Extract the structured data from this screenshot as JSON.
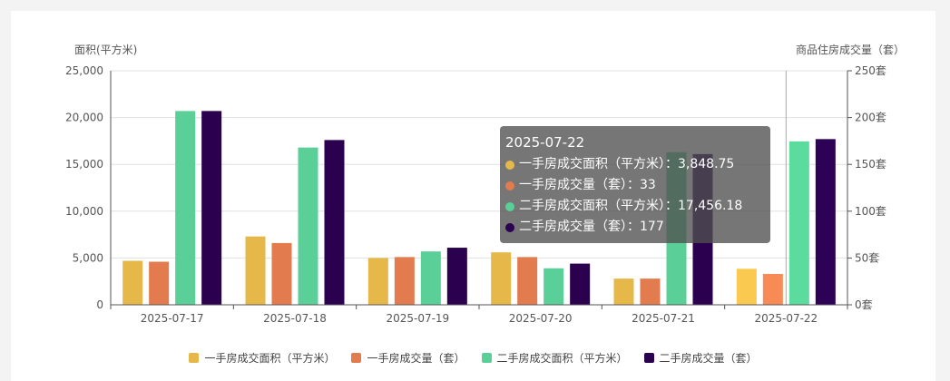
{
  "chart_data": {
    "type": "bar",
    "y_left_label": "面积(平方米)",
    "y_right_label": "商品住房成交量（套）",
    "categories": [
      "2025-07-17",
      "2025-07-18",
      "2025-07-19",
      "2025-07-20",
      "2025-07-21",
      "2025-07-22"
    ],
    "ylim_left": [
      0,
      25000
    ],
    "ylim_right": [
      0,
      250
    ],
    "left_ticks": [
      "0",
      "5,000",
      "10,000",
      "15,000",
      "20,000",
      "25,000"
    ],
    "right_ticks": [
      "0套",
      "50套",
      "100套",
      "150套",
      "200套",
      "250套"
    ],
    "grid": true,
    "legend_position": "bottom",
    "series": [
      {
        "name": "一手房成交面积（平方米）",
        "axis": "left",
        "color": "#E6B84A",
        "values": [
          4700,
          7300,
          5000,
          5600,
          2800,
          3848.75
        ]
      },
      {
        "name": "一手房成交量（套）",
        "axis": "right",
        "color": "#E27B4E",
        "values": [
          46,
          66,
          51,
          51,
          28,
          33
        ]
      },
      {
        "name": "二手房成交面积（平方米）",
        "axis": "left",
        "color": "#5ACF98",
        "values": [
          20700,
          16800,
          5700,
          3900,
          16300,
          17456.18
        ]
      },
      {
        "name": "二手房成交量（套）",
        "axis": "right",
        "color": "#2A004F",
        "values": [
          207,
          176,
          61,
          44,
          161,
          177
        ]
      }
    ],
    "highlight_index": 5,
    "highlight_colors": [
      "#FAC94F",
      "#F88A55",
      "#5BDC9E",
      "#2D0156"
    ]
  },
  "tooltip": {
    "title": "2025-07-22",
    "rows": [
      {
        "text": "一手房成交面积（平方米）：3,848.75",
        "color": "#E6B84A"
      },
      {
        "text": "一手房成交量（套）：33",
        "color": "#E27B4E"
      },
      {
        "text": "二手房成交面积（平方米）：17,456.18",
        "color": "#5ACF98"
      },
      {
        "text": "二手房成交量（套）：177",
        "color": "#2A004F"
      }
    ]
  }
}
